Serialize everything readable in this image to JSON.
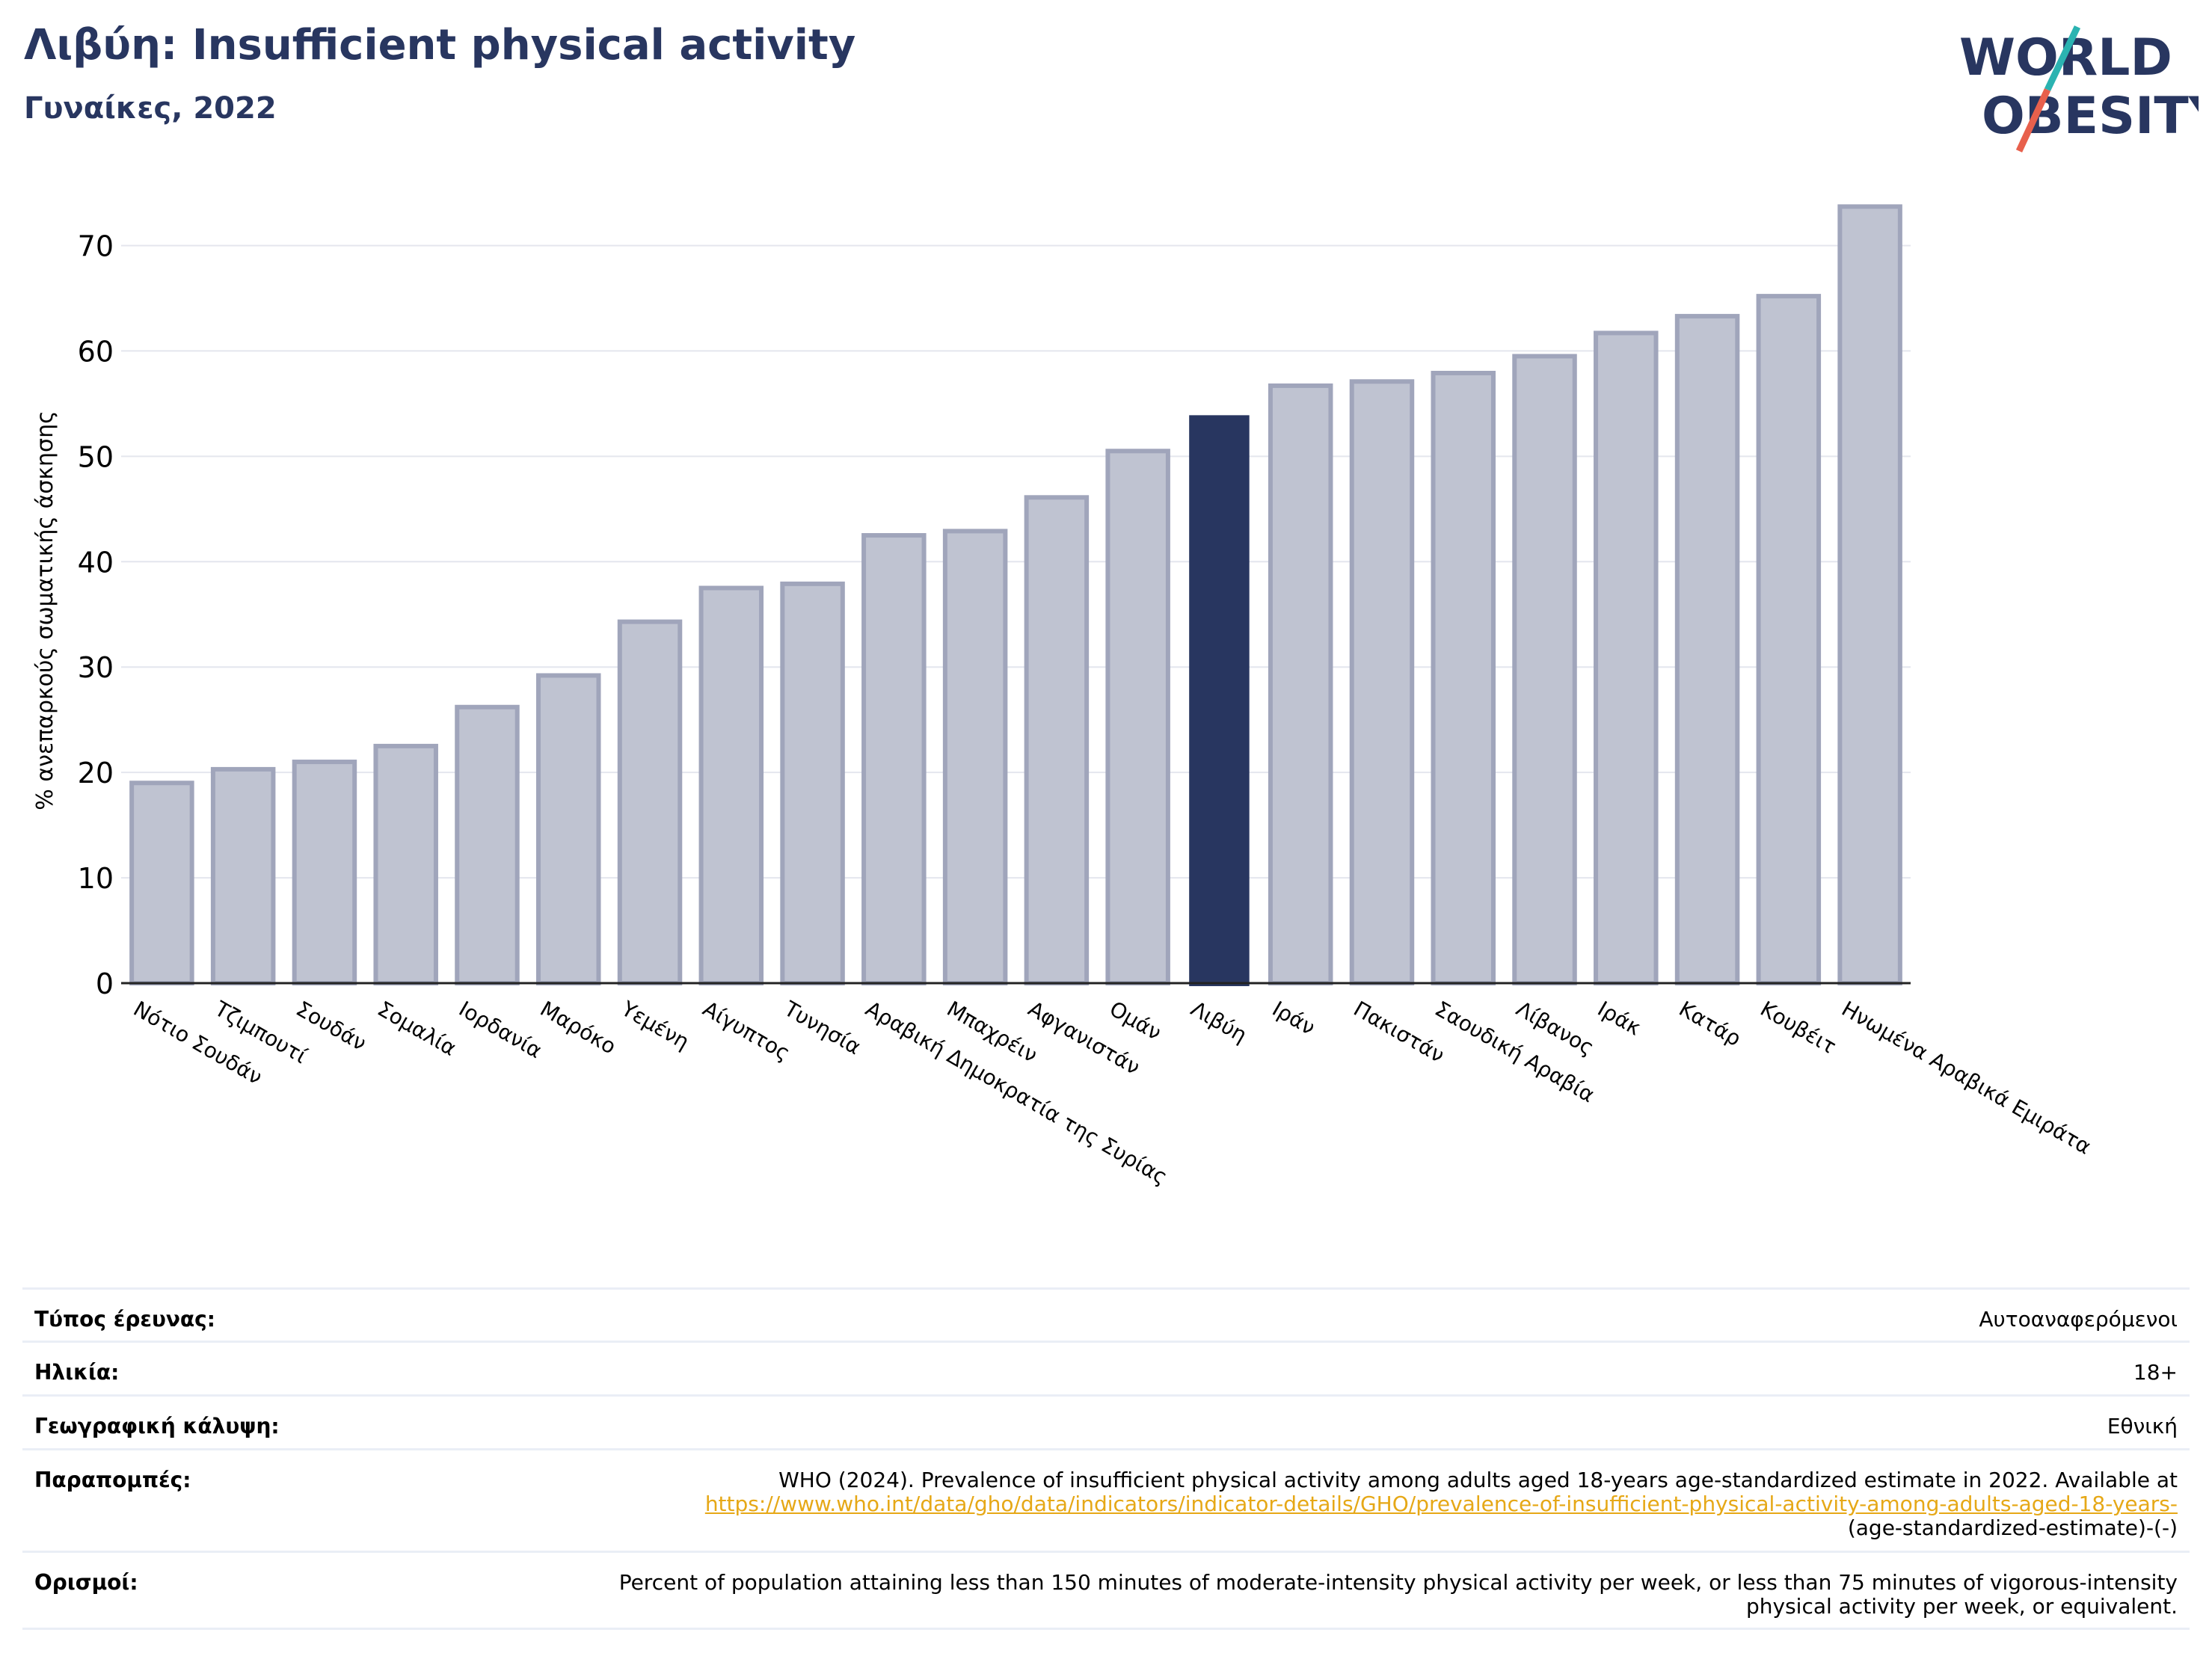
{
  "header": {
    "title": "Λιβύη: Insufficient physical activity",
    "subtitle": "Γυναίκες, 2022"
  },
  "logo": {
    "line1": "WORLD",
    "line2": "OBESITY"
  },
  "colors": {
    "highlight": "#283660",
    "bar": "#bfc3d1",
    "bar_edge": "#a0a5bb",
    "link": "#e6a817"
  },
  "chart_data": {
    "type": "bar",
    "ylabel": "% ανεπαρκούς σωματικής άσκησης",
    "ylim": [
      0,
      75
    ],
    "yticks": [
      0,
      10,
      20,
      30,
      40,
      50,
      60,
      70
    ],
    "grid": true,
    "highlight": "Λιβύη",
    "categories": [
      "Νότιο Σουδάν",
      "Τζιμπουτί",
      "Σουδάν",
      "Σομαλία",
      "Ιορδανία",
      "Μαρόκο",
      "Υεμένη",
      "Αίγυπτος",
      "Τυνησία",
      "Αραβική Δημοκρατία της Συρίας",
      "Μπαχρέιν",
      "Αφγανιστάν",
      "Ομάν",
      "Λιβύη",
      "Ιράν",
      "Πακιστάν",
      "Σαουδική Αραβία",
      "Λίβανος",
      "Ιράκ",
      "Κατάρ",
      "Κουβέιτ",
      "Ηνωμένα Αραβικά Εμιράτα"
    ],
    "values": [
      19.0,
      20.3,
      21.0,
      22.5,
      26.2,
      29.2,
      34.3,
      37.5,
      37.9,
      42.5,
      42.9,
      46.1,
      50.5,
      53.9,
      56.7,
      57.1,
      57.9,
      59.5,
      61.7,
      63.3,
      65.2,
      73.7
    ]
  },
  "info": {
    "rows": [
      {
        "label": "Τύπος έρευνας:",
        "value": "Αυτοαναφερόμενοι"
      },
      {
        "label": "Ηλικία:",
        "value": "18+"
      },
      {
        "label": "Γεωγραφική κάλυψη:",
        "value": "Εθνική"
      },
      {
        "label": "Παραπομπές:",
        "value": "WHO (2024). Prevalence of insufficient physical activity among adults aged 18-years age-standardized estimate in 2022. Available at",
        "link": "https://www.who.int/data/gho/data/indicators/indicator-details/GHO/prevalence-of-insufficient-physical-activity-among-adults-aged-18-years-",
        "value_end": "(age-standardized-estimate)-(-)"
      },
      {
        "label": "Ορισμοί:",
        "value": "Percent of population attaining less than 150 minutes of moderate-intensity physical activity per week, or less than 75 minutes of vigorous-intensity physical activity per week, or equivalent."
      }
    ]
  }
}
